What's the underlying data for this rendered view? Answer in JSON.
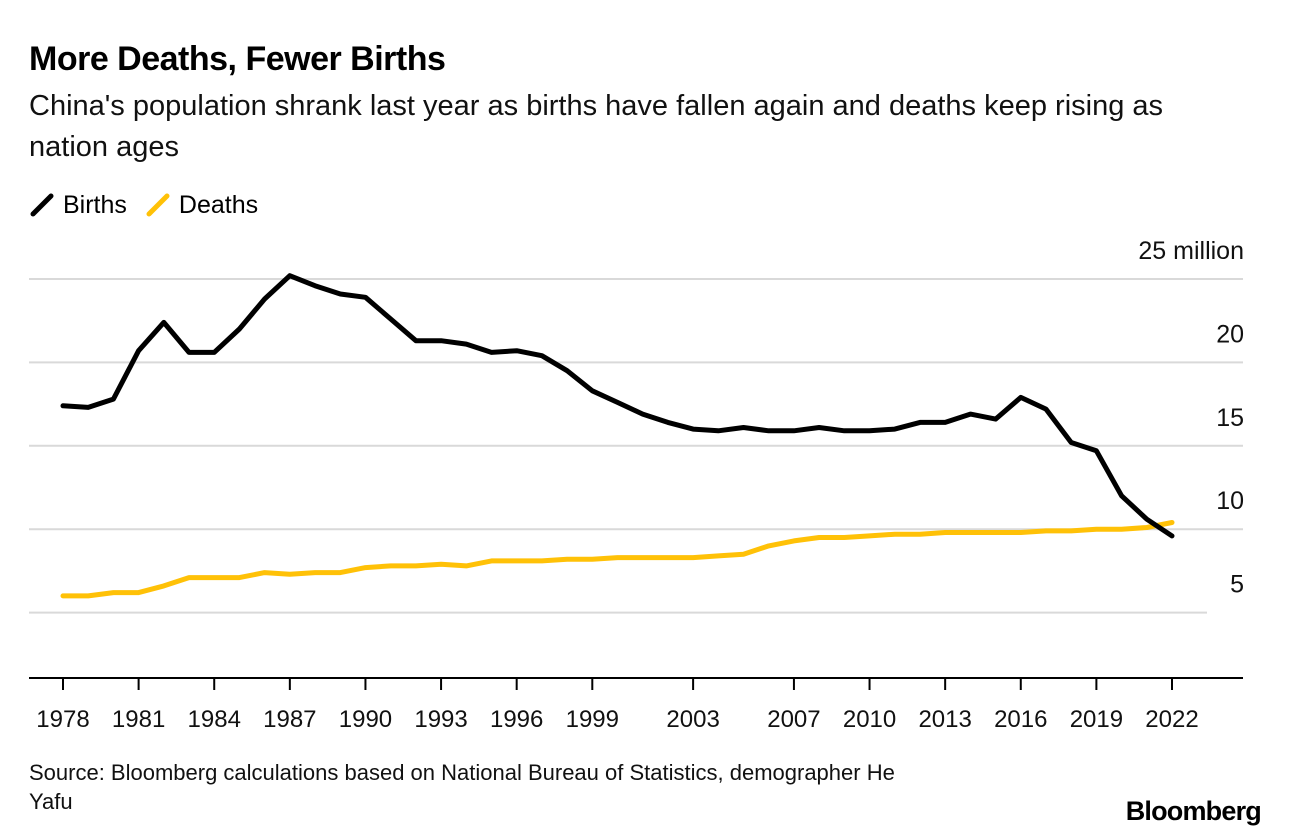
{
  "chart_data": {
    "type": "line",
    "title": "More Deaths, Fewer Births",
    "subtitle": "China's population shrank last year as births have fallen again and deaths keep rising as nation ages",
    "unit_label": "25 million",
    "x": [
      1978,
      1979,
      1980,
      1981,
      1982,
      1983,
      1984,
      1985,
      1986,
      1987,
      1988,
      1989,
      1990,
      1991,
      1992,
      1993,
      1994,
      1995,
      1996,
      1997,
      1998,
      1999,
      2000,
      2001,
      2002,
      2003,
      2004,
      2005,
      2006,
      2007,
      2008,
      2009,
      2010,
      2011,
      2012,
      2013,
      2014,
      2015,
      2016,
      2017,
      2018,
      2019,
      2020,
      2021,
      2022
    ],
    "xticks": [
      "1978",
      "1981",
      "1984",
      "1987",
      "1990",
      "1993",
      "1996",
      "1999",
      "2003",
      "2007",
      "2010",
      "2013",
      "2016",
      "2019",
      "2022"
    ],
    "yticks": [
      5,
      10,
      15,
      20
    ],
    "ylim": [
      0,
      25
    ],
    "grid": true,
    "series": [
      {
        "name": "Births",
        "color": "#000000",
        "values": [
          17.4,
          17.3,
          17.8,
          20.7,
          22.4,
          20.6,
          20.6,
          22.0,
          23.8,
          25.2,
          24.6,
          24.1,
          23.9,
          22.6,
          21.3,
          21.3,
          21.1,
          20.6,
          20.7,
          20.4,
          19.5,
          18.3,
          17.6,
          16.9,
          16.4,
          16.0,
          15.9,
          16.1,
          15.9,
          15.9,
          16.1,
          15.9,
          15.9,
          16.0,
          16.4,
          16.4,
          16.9,
          16.6,
          17.9,
          17.2,
          15.2,
          14.7,
          12.0,
          10.6,
          9.6
        ]
      },
      {
        "name": "Deaths",
        "color": "#FFC107",
        "values": [
          6.0,
          6.0,
          6.2,
          6.2,
          6.6,
          7.1,
          7.1,
          7.1,
          7.4,
          7.3,
          7.4,
          7.4,
          7.7,
          7.8,
          7.8,
          7.9,
          7.8,
          8.1,
          8.1,
          8.1,
          8.2,
          8.2,
          8.3,
          8.3,
          8.3,
          8.3,
          8.4,
          8.5,
          9.0,
          9.3,
          9.5,
          9.5,
          9.6,
          9.7,
          9.7,
          9.8,
          9.8,
          9.8,
          9.8,
          9.9,
          9.9,
          10.0,
          10.0,
          10.1,
          10.4
        ]
      }
    ]
  },
  "legend": {
    "births_label": "Births",
    "deaths_label": "Deaths"
  },
  "footer": {
    "source": "Source: Bloomberg calculations based on National Bureau of Statistics, demographer He Yafu",
    "brand": "Bloomberg"
  }
}
